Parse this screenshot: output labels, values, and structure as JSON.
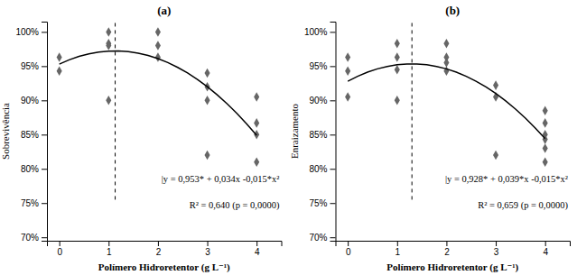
{
  "chart_data": [
    {
      "type": "scatter",
      "title": "(a)",
      "x_label": "Polímero Hidroretentor (g L⁻¹)",
      "y_label": "Sobrevivência",
      "series": [
        {
          "type": "scatter",
          "color": "#666666",
          "marker": "diamond",
          "x": [
            0,
            0,
            1,
            1,
            1,
            1,
            2,
            2,
            2,
            3,
            3,
            3,
            3,
            4,
            4,
            4,
            4
          ],
          "values": [
            0.963,
            0.943,
            0.983,
            0.98,
            1.0,
            0.9,
            0.963,
            0.98,
            1.0,
            0.94,
            0.92,
            0.9,
            0.82,
            0.905,
            0.867,
            0.85,
            0.81
          ]
        },
        {
          "type": "line",
          "color": "#000000",
          "line_style": "solid",
          "x": [
            0,
            0.2,
            0.4,
            0.6,
            0.8,
            1.0,
            1.2,
            1.4,
            1.6,
            1.8,
            2.0,
            2.2,
            2.4,
            2.6,
            2.8,
            3.0,
            3.2,
            3.4,
            3.6,
            3.8,
            4.0
          ],
          "values": [
            0.953,
            0.9592,
            0.9642,
            0.968,
            0.9706,
            0.972,
            0.9722,
            0.9712,
            0.969,
            0.9656,
            0.961,
            0.9552,
            0.9482,
            0.94,
            0.9306,
            0.92,
            0.9082,
            0.8952,
            0.881,
            0.8656,
            0.849
          ]
        }
      ],
      "reference_line": {
        "x": 1.133,
        "ymin": 0.755,
        "color": "#000000",
        "line_style": "dashed"
      },
      "annotations": [
        "|y = 0,953* + 0,034x -0,015*x²",
        "R² = 0,640 (p = 0,0000)"
      ],
      "xlim": [
        -0.25,
        4.5
      ],
      "xticks": [
        0,
        1,
        2,
        3,
        4
      ],
      "ylim": [
        0.695,
        1.015
      ],
      "yticks": [
        {
          "value": 0.7,
          "label": "70%"
        },
        {
          "value": 0.75,
          "label": "75%"
        },
        {
          "value": 0.8,
          "label": "80%"
        },
        {
          "value": 0.85,
          "label": "85%"
        },
        {
          "value": 0.9,
          "label": "90%"
        },
        {
          "value": 0.95,
          "label": "95%"
        },
        {
          "value": 1.0,
          "label": "100%"
        }
      ],
      "grid": false
    },
    {
      "type": "scatter",
      "title": "(b)",
      "x_label": "Polímero Hidroretentor (g L⁻¹)",
      "y_label": "Enraizamento",
      "series": [
        {
          "type": "scatter",
          "color": "#666666",
          "marker": "diamond",
          "x": [
            0,
            0,
            0,
            1,
            1,
            1,
            1,
            2,
            2,
            2,
            2,
            3,
            3,
            3,
            4,
            4,
            4,
            4,
            4,
            4
          ],
          "values": [
            0.963,
            0.943,
            0.905,
            0.983,
            0.963,
            0.945,
            0.9,
            0.983,
            0.963,
            0.955,
            0.943,
            0.922,
            0.905,
            0.82,
            0.885,
            0.867,
            0.85,
            0.843,
            0.83,
            0.81
          ]
        },
        {
          "type": "line",
          "color": "#000000",
          "line_style": "solid",
          "x": [
            0,
            0.2,
            0.4,
            0.6,
            0.8,
            1.0,
            1.2,
            1.4,
            1.6,
            1.8,
            2.0,
            2.2,
            2.4,
            2.6,
            2.8,
            3.0,
            3.2,
            3.4,
            3.6,
            3.8,
            4.0
          ],
          "values": [
            0.928,
            0.9352,
            0.9412,
            0.946,
            0.9496,
            0.952,
            0.9532,
            0.9532,
            0.952,
            0.9496,
            0.946,
            0.9412,
            0.9352,
            0.928,
            0.9196,
            0.91,
            0.8992,
            0.8872,
            0.874,
            0.8596,
            0.844
          ]
        }
      ],
      "reference_line": {
        "x": 1.3,
        "ymin": 0.755,
        "color": "#000000",
        "line_style": "dashed"
      },
      "annotations": [
        "|y = 0,928* + 0,039*x -0,015*x²",
        "R² = 0,659 (p = 0,0000)"
      ],
      "xlim": [
        -0.25,
        4.5
      ],
      "xticks": [
        0,
        1,
        2,
        3,
        4
      ],
      "ylim": [
        0.695,
        1.015
      ],
      "yticks": [
        {
          "value": 0.7,
          "label": "70%"
        },
        {
          "value": 0.75,
          "label": "75%"
        },
        {
          "value": 0.8,
          "label": "80%"
        },
        {
          "value": 0.85,
          "label": "85%"
        },
        {
          "value": 0.9,
          "label": "90%"
        },
        {
          "value": 0.95,
          "label": "95%"
        },
        {
          "value": 1.0,
          "label": "100%"
        }
      ],
      "grid": false
    }
  ]
}
